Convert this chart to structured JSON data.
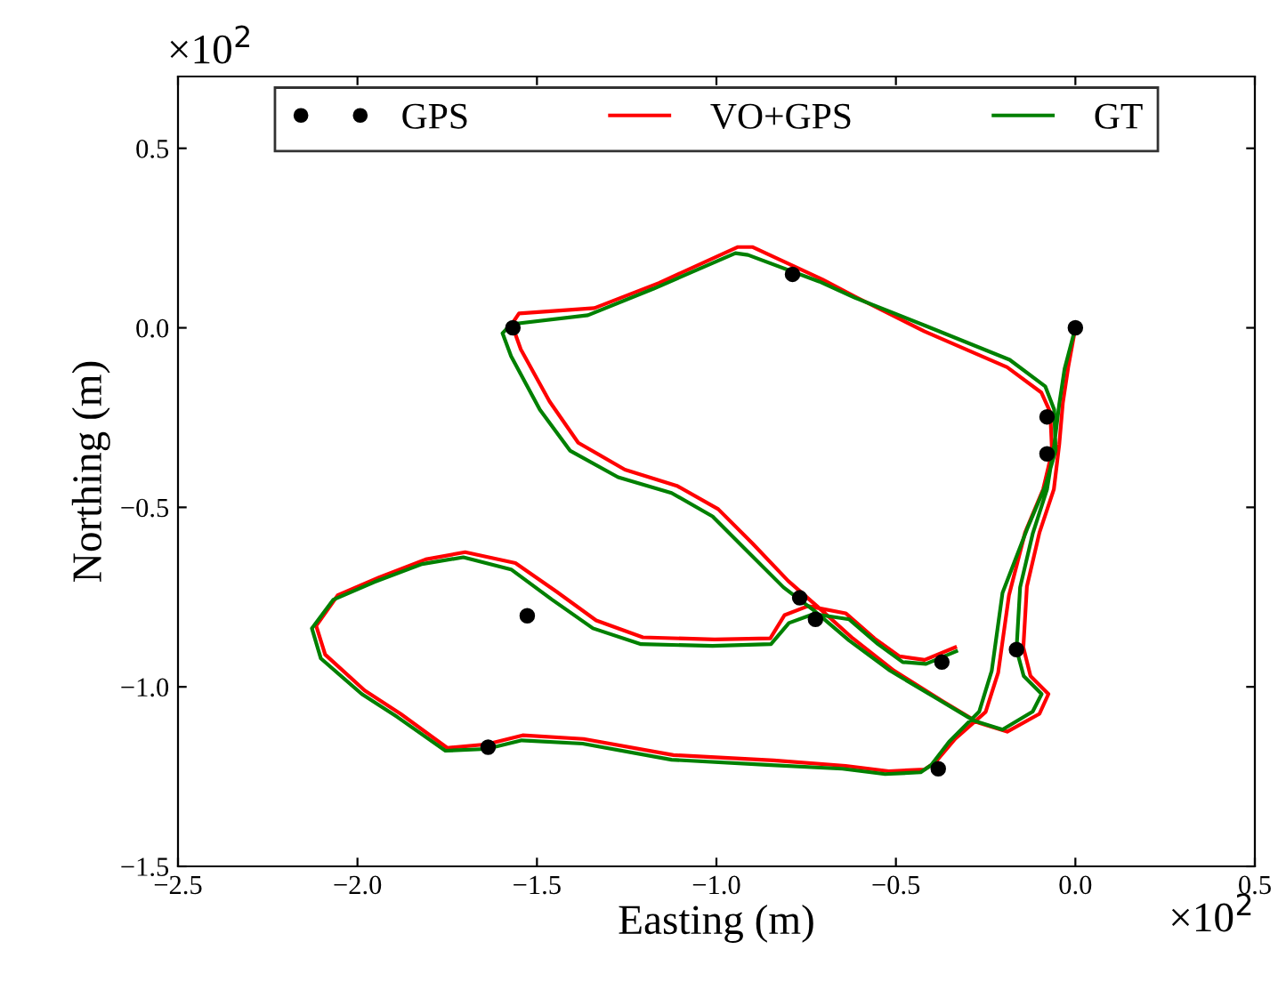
{
  "chart_data": {
    "type": "line",
    "xlabel": "Easting (m)",
    "ylabel": "Northing (m)",
    "xlim": [
      -2.5,
      0.5
    ],
    "ylim": [
      -1.5,
      0.7
    ],
    "xticks": [
      {
        "value": -2.5,
        "label": "−2.5"
      },
      {
        "value": -2.0,
        "label": "−2.0"
      },
      {
        "value": -1.5,
        "label": "−1.5"
      },
      {
        "value": -1.0,
        "label": "−1.0"
      },
      {
        "value": -0.5,
        "label": "−0.5"
      },
      {
        "value": 0.0,
        "label": "0.0"
      },
      {
        "value": 0.5,
        "label": "0.5"
      }
    ],
    "yticks": [
      {
        "value": -1.5,
        "label": "−1.5"
      },
      {
        "value": -1.0,
        "label": "−1.0"
      },
      {
        "value": -0.5,
        "label": "−0.5"
      },
      {
        "value": 0.0,
        "label": "0.0"
      },
      {
        "value": 0.5,
        "label": "0.5"
      }
    ],
    "annotations": [
      "×10$^{2}$",
      "×10$^{2}$"
    ],
    "legend": "top",
    "grid": false,
    "series": [
      {
        "name": "GPS",
        "type": "scatter",
        "color": "#000000",
        "marker": "circle",
        "x": [
          0.0,
          -0.079,
          -0.079,
          -0.788,
          -1.567,
          -0.164,
          -0.768,
          -0.724,
          -0.372,
          -0.382,
          -1.527,
          -1.636
        ],
        "values": [
          0.0,
          -0.248,
          -0.351,
          0.149,
          0.0,
          -0.896,
          -0.752,
          -0.812,
          -0.931,
          -1.228,
          -0.802,
          -1.168
        ]
      },
      {
        "name": "VO+GPS",
        "color": "#ff0000",
        "x": [
          0.0,
          -0.02,
          -0.035,
          -0.045,
          -0.06,
          -0.1,
          -0.135,
          -0.145,
          -0.125,
          -0.075,
          -0.1,
          -0.19,
          -0.27,
          -0.37,
          -0.505,
          -0.62,
          -0.72,
          -0.8,
          -0.9,
          -0.995,
          -1.11,
          -1.255,
          -1.385,
          -1.465,
          -1.545,
          -1.57,
          -1.55,
          -1.34,
          -1.16,
          -0.94,
          -0.9,
          -0.705,
          -0.61,
          -0.42,
          -0.19,
          -0.095,
          -0.07,
          -0.065,
          -0.09,
          -0.14,
          -0.185,
          -0.215,
          -0.25,
          -0.335,
          -0.39,
          -0.42,
          -0.52,
          -0.64,
          -0.84,
          -1.12,
          -1.37,
          -1.54,
          -1.64,
          -1.75,
          -1.88,
          -1.98,
          -2.09,
          -2.115,
          -2.055,
          -1.94,
          -1.81,
          -1.7,
          -1.56,
          -1.445,
          -1.335,
          -1.205,
          -1.005,
          -0.85,
          -0.81,
          -0.745,
          -0.64,
          -0.56,
          -0.49,
          -0.42,
          -0.335
        ],
        "values": [
          0.0,
          -0.11,
          -0.21,
          -0.325,
          -0.45,
          -0.57,
          -0.72,
          -0.89,
          -0.97,
          -1.02,
          -1.075,
          -1.125,
          -1.1,
          -1.04,
          -0.955,
          -0.865,
          -0.775,
          -0.705,
          -0.6,
          -0.505,
          -0.44,
          -0.395,
          -0.32,
          -0.205,
          -0.06,
          0.01,
          0.04,
          0.055,
          0.125,
          0.225,
          0.225,
          0.135,
          0.085,
          -0.01,
          -0.11,
          -0.18,
          -0.235,
          -0.345,
          -0.45,
          -0.57,
          -0.745,
          -0.96,
          -1.07,
          -1.145,
          -1.21,
          -1.23,
          -1.235,
          -1.22,
          -1.205,
          -1.19,
          -1.145,
          -1.135,
          -1.16,
          -1.17,
          -1.075,
          -1.01,
          -0.91,
          -0.83,
          -0.745,
          -0.695,
          -0.645,
          -0.625,
          -0.655,
          -0.735,
          -0.815,
          -0.862,
          -0.868,
          -0.865,
          -0.8,
          -0.775,
          -0.795,
          -0.865,
          -0.915,
          -0.925,
          -0.89
        ]
      },
      {
        "name": "GT",
        "color": "#008000",
        "x": [
          0.0,
          -0.03,
          -0.045,
          -0.059,
          -0.079,
          -0.119,
          -0.154,
          -0.164,
          -0.144,
          -0.094,
          -0.119,
          -0.203,
          -0.283,
          -0.382,
          -0.516,
          -0.63,
          -0.729,
          -0.813,
          -0.912,
          -1.011,
          -1.125,
          -1.274,
          -1.408,
          -1.492,
          -1.572,
          -1.596,
          -1.572,
          -1.358,
          -1.175,
          -0.947,
          -0.912,
          -0.714,
          -0.615,
          -0.416,
          -0.183,
          -0.084,
          -0.059,
          -0.055,
          -0.084,
          -0.134,
          -0.203,
          -0.233,
          -0.268,
          -0.352,
          -0.402,
          -0.431,
          -0.53,
          -0.649,
          -0.848,
          -1.125,
          -1.373,
          -1.542,
          -1.641,
          -1.755,
          -1.889,
          -1.988,
          -2.102,
          -2.127,
          -2.067,
          -1.953,
          -1.82,
          -1.705,
          -1.572,
          -1.458,
          -1.344,
          -1.21,
          -1.011,
          -0.848,
          -0.798,
          -0.729,
          -0.63,
          -0.55,
          -0.481,
          -0.416,
          -0.332
        ],
        "values": [
          0.0,
          -0.114,
          -0.213,
          -0.327,
          -0.45,
          -0.574,
          -0.723,
          -0.896,
          -0.97,
          -1.02,
          -1.069,
          -1.119,
          -1.094,
          -1.035,
          -0.955,
          -0.871,
          -0.787,
          -0.723,
          -0.624,
          -0.525,
          -0.46,
          -0.416,
          -0.342,
          -0.228,
          -0.079,
          -0.015,
          0.01,
          0.035,
          0.109,
          0.208,
          0.203,
          0.129,
          0.084,
          0.005,
          -0.089,
          -0.163,
          -0.228,
          -0.342,
          -0.441,
          -0.559,
          -0.738,
          -0.955,
          -1.069,
          -1.153,
          -1.218,
          -1.238,
          -1.243,
          -1.228,
          -1.218,
          -1.203,
          -1.158,
          -1.149,
          -1.173,
          -1.178,
          -1.084,
          -1.02,
          -0.921,
          -0.837,
          -0.757,
          -0.708,
          -0.658,
          -0.639,
          -0.673,
          -0.757,
          -0.837,
          -0.881,
          -0.886,
          -0.881,
          -0.822,
          -0.797,
          -0.812,
          -0.881,
          -0.931,
          -0.936,
          -0.901
        ]
      }
    ]
  }
}
